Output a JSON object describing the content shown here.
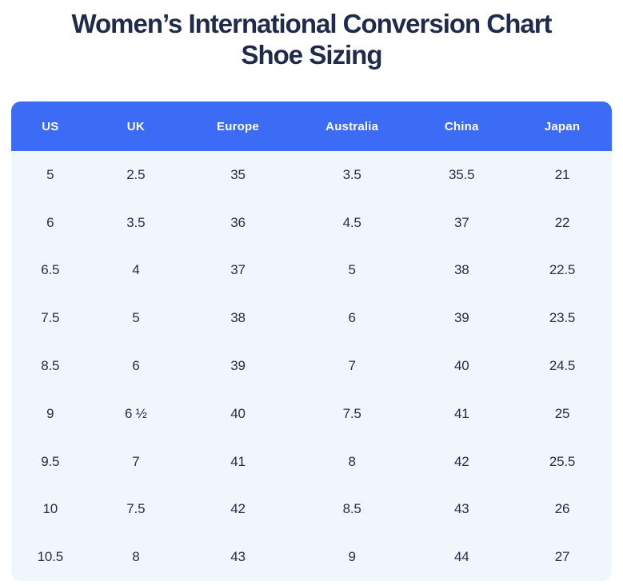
{
  "title": {
    "line1": "Women’s International Conversion Chart",
    "line2": "Shoe Sizing"
  },
  "colors": {
    "page_bg": "#ffffff",
    "header_bg": "#3c6cf5",
    "header_text": "#ffffff",
    "body_bg": "#f1f6fd",
    "title_text": "#1f2b4c",
    "cell_text": "#232e4a"
  },
  "chart_data": {
    "type": "table",
    "title": "Women’s International Conversion Chart Shoe Sizing",
    "columns": [
      "US",
      "UK",
      "Europe",
      "Australia",
      "China",
      "Japan"
    ],
    "rows": [
      [
        "5",
        "2.5",
        "35",
        "3.5",
        "35.5",
        "21"
      ],
      [
        "6",
        "3.5",
        "36",
        "4.5",
        "37",
        "22"
      ],
      [
        "6.5",
        "4",
        "37",
        "5",
        "38",
        "22.5"
      ],
      [
        "7.5",
        "5",
        "38",
        "6",
        "39",
        "23.5"
      ],
      [
        "8.5",
        "6",
        "39",
        "7",
        "40",
        "24.5"
      ],
      [
        "9",
        "6 ½",
        "40",
        "7.5",
        "41",
        "25"
      ],
      [
        "9.5",
        "7",
        "41",
        "8",
        "42",
        "25.5"
      ],
      [
        "10",
        "7.5",
        "42",
        "8.5",
        "43",
        "26"
      ],
      [
        "10.5",
        "8",
        "43",
        "9",
        "44",
        "27"
      ]
    ]
  }
}
